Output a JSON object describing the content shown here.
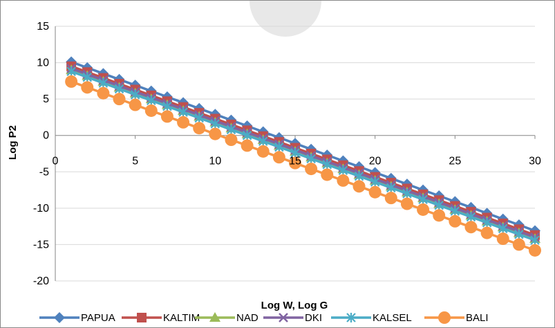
{
  "chart_data": {
    "type": "line",
    "title": "",
    "xlabel": "Log W, Log G",
    "ylabel": "Log P2",
    "xlim": [
      0,
      30
    ],
    "ylim": [
      -20,
      15
    ],
    "x_ticks": [
      0,
      5,
      10,
      15,
      20,
      25,
      30
    ],
    "y_ticks": [
      15,
      10,
      5,
      0,
      -5,
      -10,
      -15,
      -20
    ],
    "x_tick_labels": [
      "0",
      "5",
      "10",
      "15",
      "20",
      "25",
      "30"
    ],
    "y_tick_labels": [
      "15",
      "10",
      "5",
      "0",
      "-5",
      "-10",
      "-15",
      "-20"
    ],
    "grid": "horizontal",
    "legend": "bottom",
    "x": [
      1,
      2,
      3,
      4,
      5,
      6,
      7,
      8,
      9,
      10,
      11,
      12,
      13,
      14,
      15,
      16,
      17,
      18,
      19,
      20,
      21,
      22,
      23,
      24,
      25,
      26,
      27,
      28,
      29,
      30
    ],
    "series": [
      {
        "name": "PAPUA",
        "color": "#4f81bd",
        "marker": "diamond",
        "values": [
          10.1,
          9.3,
          8.5,
          7.7,
          6.9,
          6.1,
          5.3,
          4.5,
          3.7,
          2.9,
          2.1,
          1.3,
          0.5,
          -0.3,
          -1.1,
          -1.9,
          -2.7,
          -3.5,
          -4.3,
          -5.1,
          -5.9,
          -6.7,
          -7.5,
          -8.3,
          -9.1,
          -9.9,
          -10.7,
          -11.5,
          -12.3,
          -13.1
        ]
      },
      {
        "name": "KALTIM",
        "color": "#c0504d",
        "marker": "square",
        "values": [
          9.5,
          8.7,
          7.9,
          7.1,
          6.3,
          5.5,
          4.7,
          3.9,
          3.1,
          2.3,
          1.5,
          0.7,
          -0.1,
          -0.9,
          -1.7,
          -2.5,
          -3.3,
          -4.1,
          -4.9,
          -5.7,
          -6.5,
          -7.3,
          -8.1,
          -8.9,
          -9.7,
          -10.5,
          -11.3,
          -12.1,
          -12.9,
          -13.7
        ]
      },
      {
        "name": "NAD",
        "color": "#9bbb59",
        "marker": "triangle",
        "values": [
          9.0,
          8.2,
          7.4,
          6.6,
          5.8,
          5.0,
          4.2,
          3.4,
          2.6,
          1.8,
          1.0,
          0.2,
          -0.6,
          -1.4,
          -2.2,
          -3.0,
          -3.8,
          -4.6,
          -5.4,
          -6.2,
          -7.0,
          -7.8,
          -8.6,
          -9.4,
          -10.2,
          -11.0,
          -11.8,
          -12.6,
          -13.4,
          -14.2
        ]
      },
      {
        "name": "DKI",
        "color": "#8064a2",
        "marker": "x",
        "values": [
          9.2,
          8.4,
          7.6,
          6.8,
          6.0,
          5.2,
          4.4,
          3.6,
          2.8,
          2.0,
          1.2,
          0.4,
          -0.4,
          -1.2,
          -2.0,
          -2.8,
          -3.6,
          -4.4,
          -5.2,
          -6.0,
          -6.8,
          -7.6,
          -8.4,
          -9.2,
          -10.0,
          -10.8,
          -11.6,
          -12.4,
          -13.2,
          -14.0
        ]
      },
      {
        "name": "KALSEL",
        "color": "#4bacc6",
        "marker": "star",
        "values": [
          8.8,
          8.0,
          7.2,
          6.4,
          5.6,
          4.8,
          4.0,
          3.2,
          2.4,
          1.6,
          0.8,
          0.0,
          -0.8,
          -1.6,
          -2.4,
          -3.2,
          -4.0,
          -4.8,
          -5.6,
          -6.4,
          -7.2,
          -8.0,
          -8.8,
          -9.6,
          -10.4,
          -11.2,
          -12.0,
          -12.8,
          -13.6,
          -14.4
        ]
      },
      {
        "name": "BALI",
        "color": "#f79646",
        "marker": "circle",
        "values": [
          7.4,
          6.6,
          5.8,
          5.0,
          4.2,
          3.4,
          2.6,
          1.8,
          1.0,
          0.2,
          -0.6,
          -1.4,
          -2.2,
          -3.0,
          -3.8,
          -4.6,
          -5.4,
          -6.2,
          -7.0,
          -7.8,
          -8.6,
          -9.4,
          -10.2,
          -11.0,
          -11.8,
          -12.6,
          -13.4,
          -14.2,
          -15.0,
          -15.8
        ]
      }
    ]
  }
}
